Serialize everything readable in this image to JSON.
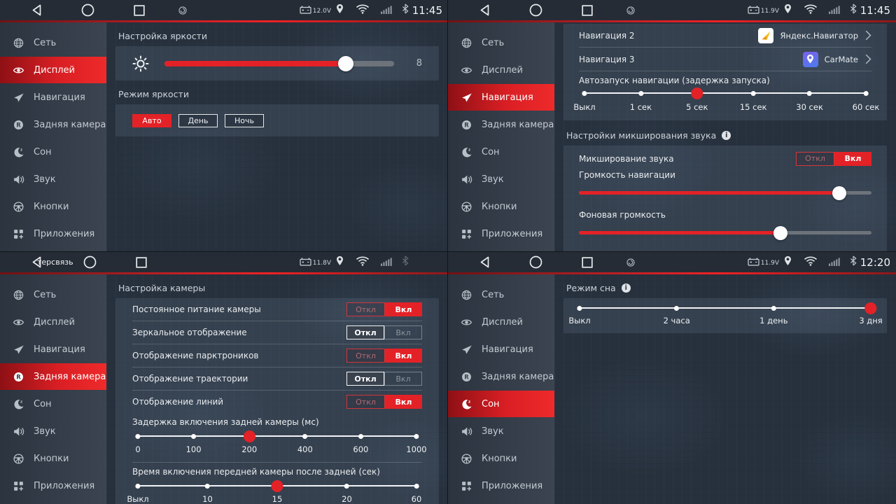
{
  "labels": {
    "off": "Откл",
    "on": "Вкл"
  },
  "sidebar": {
    "items": [
      {
        "id": "network",
        "label": "Сеть",
        "icon": "globe-icon"
      },
      {
        "id": "display",
        "label": "Дисплей",
        "icon": "eye-icon"
      },
      {
        "id": "navigation",
        "label": "Навигация",
        "icon": "send-icon"
      },
      {
        "id": "rear-camera",
        "label": "Задняя камера",
        "icon": "rear-camera-icon"
      },
      {
        "id": "sleep",
        "label": "Сон",
        "icon": "moon-icon"
      },
      {
        "id": "sound",
        "label": "Звук",
        "icon": "speaker-icon"
      },
      {
        "id": "buttons",
        "label": "Кнопки",
        "icon": "steering-wheel-icon"
      },
      {
        "id": "apps",
        "label": "Приложения",
        "icon": "apps-icon"
      }
    ]
  },
  "colors": {
    "accent_red": "#e32227",
    "panel": "rgba(158,180,204,0.12)",
    "statusbar": "#262c35",
    "sidebar": "#343e4a"
  },
  "screens": [
    {
      "id": "display",
      "active_index": 1,
      "statusbar": {
        "voltage": "12.0V",
        "time": "11:45"
      },
      "brightness": {
        "section": "Настройка яркости",
        "value": "8",
        "percent": 79
      },
      "mode": {
        "section": "Режим яркости",
        "buttons": [
          "Авто",
          "День",
          "Ночь"
        ],
        "active": 0
      }
    },
    {
      "id": "navigation",
      "active_index": 2,
      "statusbar": {
        "voltage": "11.9V",
        "time": "11:45"
      },
      "nav2": {
        "label": "Навигация 2",
        "app": "Яндекс.Навигатор",
        "icon": "yandex-navigator-icon"
      },
      "nav3": {
        "label": "Навигация 3",
        "app": "CarMate",
        "icon": "carmate-icon"
      },
      "autostart": {
        "label": "Автозапуск навигации (задержка запуска)",
        "stops": [
          "Выкл",
          "1 сек",
          "5 сек",
          "15 сек",
          "30 сек",
          "60 сек"
        ],
        "active": 2
      },
      "mixing": {
        "section": "Настройки микширования звука",
        "row": "Микширование звука",
        "on": true,
        "nav_label": "Громкость навигации",
        "nav_percent": 89,
        "bg_label": "Фоновая громкость",
        "bg_percent": 69
      }
    },
    {
      "id": "rear-camera",
      "active_index": 3,
      "statusbar": {
        "voltage": "11.8V",
        "time": "",
        "logo": "терсвязь"
      },
      "section": "Настройка камеры",
      "rows": [
        {
          "label": "Постоянное питание камеры",
          "on": true
        },
        {
          "label": "Зеркальное отображение",
          "on": false
        },
        {
          "label": "Отображение парктроников",
          "on": true
        },
        {
          "label": "Отображение траектории",
          "on": false
        },
        {
          "label": "Отображение линий",
          "on": true
        }
      ],
      "delay": {
        "label": "Задержка включения задней камеры (мс)",
        "stops": [
          "0",
          "100",
          "200",
          "400",
          "600",
          "1000"
        ],
        "active": 2
      },
      "front": {
        "label": "Время включения передней камеры после задней (сек)",
        "stops": [
          "Выкл",
          "10",
          "15",
          "20",
          "60"
        ],
        "active": 2
      }
    },
    {
      "id": "sleep",
      "active_index": 4,
      "statusbar": {
        "voltage": "11.9V",
        "time": "12:20"
      },
      "sleep": {
        "section": "Режим сна",
        "stops": [
          "Выкл",
          "2 часа",
          "1 день",
          "3 дня"
        ],
        "active": 3
      }
    }
  ]
}
